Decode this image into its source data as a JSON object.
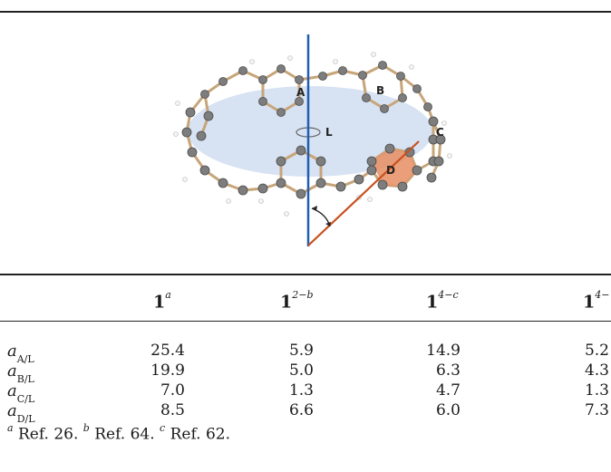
{
  "figure": {
    "ring_labels": {
      "A": "A",
      "B": "B",
      "C": "C",
      "D": "D",
      "L": "L"
    },
    "colors": {
      "axis": "#1f5fb0",
      "ring_d": "#e8936a",
      "plane": "#c9d8ef",
      "bond_line": "#c8501e"
    }
  },
  "table": {
    "headers": [
      {
        "base": "1",
        "sup": "a"
      },
      {
        "base": "1",
        "sup": "2−b"
      },
      {
        "base": "1",
        "sup": "4−c"
      },
      {
        "base": "1",
        "sup": "4−"
      }
    ],
    "rows": [
      {
        "symbol": "a",
        "sub": "A/L",
        "values": [
          "25.4",
          "5.9",
          "14.9",
          "5.2"
        ]
      },
      {
        "symbol": "a",
        "sub": "B/L",
        "values": [
          "19.9",
          "5.0",
          "6.3",
          "4.3"
        ]
      },
      {
        "symbol": "a",
        "sub": "C/L",
        "values": [
          "7.0",
          "1.3",
          "4.7",
          "1.3"
        ]
      },
      {
        "symbol": "a",
        "sub": "D/L",
        "values": [
          "8.5",
          "6.6",
          "6.0",
          "7.3"
        ]
      }
    ]
  },
  "footnotes": [
    {
      "mark": "a",
      "text": " Ref. 26. "
    },
    {
      "mark": "b",
      "text": " Ref. 64. "
    },
    {
      "mark": "c",
      "text": " Ref. 62."
    }
  ]
}
